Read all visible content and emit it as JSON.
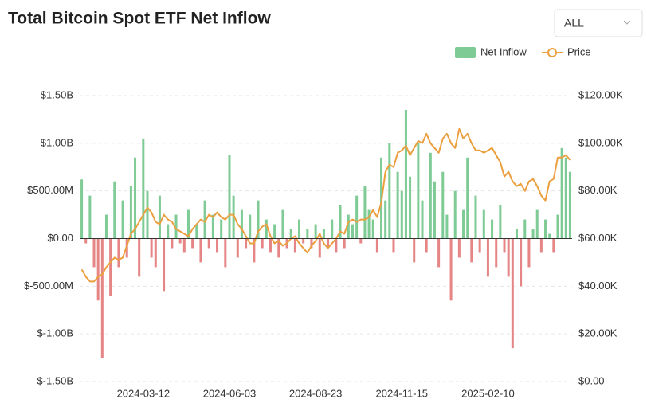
{
  "title": "Total Bitcoin Spot ETF Net Inflow",
  "range_select": "ALL",
  "chart_data": {
    "type": "bar",
    "categories": [
      null,
      null,
      null,
      null,
      null,
      null,
      null,
      null,
      null,
      null,
      null,
      null,
      null,
      null,
      null,
      "2024-03-12",
      null,
      null,
      null,
      null,
      null,
      null,
      null,
      null,
      null,
      null,
      null,
      null,
      null,
      null,
      null,
      null,
      null,
      null,
      null,
      null,
      "2024-06-03",
      null,
      null,
      null,
      null,
      null,
      null,
      null,
      null,
      null,
      null,
      null,
      null,
      null,
      null,
      null,
      null,
      null,
      null,
      null,
      null,
      "2024-08-23",
      null,
      null,
      null,
      null,
      null,
      null,
      null,
      null,
      null,
      null,
      null,
      null,
      null,
      null,
      null,
      null,
      null,
      null,
      null,
      null,
      "2024-11-15",
      null,
      null,
      null,
      null,
      null,
      null,
      null,
      null,
      null,
      null,
      null,
      null,
      null,
      null,
      null,
      null,
      null,
      null,
      null,
      null,
      "2025-02-10",
      null,
      null,
      null,
      null,
      null,
      null,
      null,
      null,
      null,
      null,
      null,
      null,
      null,
      null,
      null,
      null,
      null,
      null,
      null,
      null
    ],
    "series": [
      {
        "name": "Net Inflow",
        "type": "bar",
        "color": "#7fcb95",
        "negative_color": "#e58585",
        "values": [
          620,
          -50,
          450,
          -300,
          -650,
          -1250,
          250,
          -600,
          600,
          -300,
          400,
          -200,
          550,
          850,
          -400,
          1050,
          500,
          -200,
          -300,
          450,
          -550,
          150,
          -100,
          250,
          -50,
          -150,
          300,
          -100,
          150,
          -250,
          400,
          -100,
          250,
          -150,
          200,
          -300,
          880,
          450,
          -200,
          300,
          -100,
          250,
          -250,
          400,
          -100,
          200,
          -150,
          150,
          -200,
          300,
          -100,
          100,
          -150,
          200,
          -50,
          100,
          -100,
          150,
          -200,
          100,
          -100,
          200,
          -150,
          350,
          -100,
          250,
          150,
          450,
          -50,
          550,
          300,
          200,
          -150,
          850,
          400,
          1000,
          -150,
          700,
          500,
          1350,
          650,
          -250,
          1000,
          400,
          -150,
          900,
          600,
          -300,
          700,
          250,
          -650,
          500,
          -200,
          300,
          850,
          -250,
          450,
          -150,
          300,
          -400,
          200,
          -300,
          350,
          -150,
          -400,
          -1150,
          100,
          -500,
          200,
          -300,
          100,
          300,
          -150,
          200,
          50,
          -150,
          250,
          950,
          850,
          700
        ]
      },
      {
        "name": "Price",
        "type": "line",
        "axis": "y2",
        "color": "#eb9f3e",
        "values": [
          47,
          44,
          42,
          42,
          44,
          45,
          48,
          50,
          52,
          51,
          52,
          57,
          62,
          64,
          67,
          70,
          73,
          71,
          67,
          66,
          70,
          68,
          67,
          64,
          63,
          62,
          61,
          64,
          66,
          68,
          67,
          70,
          69,
          71,
          69,
          68,
          70,
          70,
          66,
          64,
          61,
          58,
          58,
          63,
          65,
          66,
          61,
          58,
          59,
          57,
          58,
          60,
          61,
          58,
          56,
          54,
          57,
          59,
          62,
          58,
          56,
          58,
          60,
          63,
          62,
          67,
          68,
          67,
          68,
          68,
          69,
          72,
          69,
          75,
          88,
          91,
          90,
          96,
          97,
          99,
          95,
          98,
          101,
          100,
          104,
          100,
          98,
          96,
          102,
          104,
          100,
          98,
          106,
          102,
          104,
          100,
          97,
          97,
          96,
          97,
          98,
          95,
          92,
          86,
          88,
          84,
          82,
          83,
          80,
          84,
          85,
          82,
          78,
          76,
          84,
          85,
          94,
          94,
          95,
          93
        ]
      }
    ],
    "ylim": [
      -1500,
      1500
    ],
    "yticks": [
      {
        "value": -1500,
        "label": "$-1.50B"
      },
      {
        "value": -1000,
        "label": "$-1.00B"
      },
      {
        "value": -500,
        "label": "$-500.00M"
      },
      {
        "value": 0,
        "label": "$0.00"
      },
      {
        "value": 500,
        "label": "$500.00M"
      },
      {
        "value": 1000,
        "label": "$1.00B"
      },
      {
        "value": 1500,
        "label": "$1.50B"
      }
    ],
    "y2lim": [
      0,
      120
    ],
    "y2ticks": [
      {
        "value": 0,
        "label": "$0.00"
      },
      {
        "value": 20,
        "label": "$20.00K"
      },
      {
        "value": 40,
        "label": "$40.00K"
      },
      {
        "value": 60,
        "label": "$60.00K"
      },
      {
        "value": 80,
        "label": "$80.00K"
      },
      {
        "value": 100,
        "label": "$100.00K"
      },
      {
        "value": 120,
        "label": "$120.00K"
      }
    ],
    "grid": true,
    "legend": "top-right"
  }
}
